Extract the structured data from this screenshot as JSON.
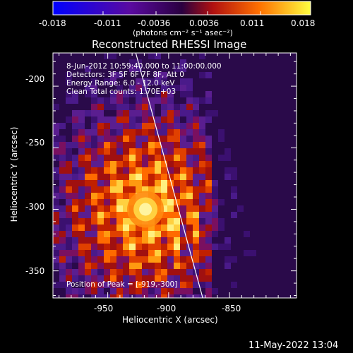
{
  "chart_data": {
    "type": "heatmap",
    "title": "Reconstructed RHESSI Image",
    "xlabel": "Heliocentric X (arcsec)",
    "ylabel": "Heliocentric Y (arcsec)",
    "xlim": [
      -995,
      -795
    ],
    "ylim": [
      -372,
      -173
    ],
    "x_ticks": [
      -950,
      -900,
      -850
    ],
    "y_ticks": [
      -200,
      -250,
      -300,
      -350
    ],
    "colorbar": {
      "range": [
        -0.018,
        0.018
      ],
      "ticks": [
        "-0.018",
        "-0.011",
        "-0.0036",
        "0.0036",
        "0.011",
        "0.018"
      ],
      "units_label": "(photons cm⁻² s⁻¹ asec⁻²)"
    },
    "annotations": [
      "8-Jun-2012 10:59:40.000 to 11:00:00.000",
      "Detectors: 3F 5F 6F 7F 8F, Att 0",
      "Energy Range: 6.0 - 12.0 keV",
      "Clean    Total counts: 1.70E+03"
    ],
    "peak_label": "Position of Peak = [-919,-300]",
    "peak": {
      "x": -919,
      "y": -300
    },
    "limb_line": [
      [
        -927,
        -173
      ],
      [
        -872,
        -372
      ]
    ],
    "grid": false
  },
  "footer": {
    "timestamp": "11-May-2022 13:04"
  }
}
